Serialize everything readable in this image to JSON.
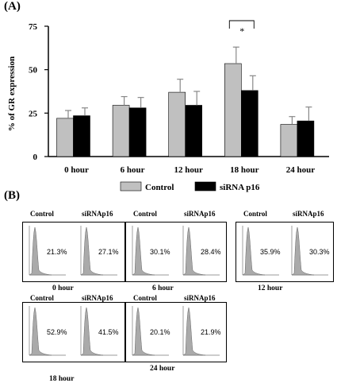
{
  "panel_a_label": "(A)",
  "panel_b_label": "(B)",
  "chart_data": {
    "type": "bar",
    "ylabel": "% of GR expression",
    "xlabel": "",
    "ylim": [
      0,
      75
    ],
    "yticks": [
      "0",
      "25",
      "50",
      "75"
    ],
    "categories": [
      "0 hour",
      "6 hour",
      "12 hour",
      "18 hour",
      "24 hour"
    ],
    "series": [
      {
        "name": "Control",
        "color": "#c0c0c0",
        "values": [
          22,
          29.5,
          37,
          53.5,
          18.5
        ],
        "errors": [
          4.5,
          5,
          7.5,
          9.5,
          4.5
        ]
      },
      {
        "name": "siRNA p16",
        "color": "#000000",
        "values": [
          23.5,
          28,
          29.5,
          38,
          20.5
        ],
        "errors": [
          4.5,
          6,
          8,
          8.5,
          8
        ]
      }
    ],
    "significance": {
      "category": "18 hour",
      "label": "*"
    },
    "legend_position": "bottom"
  },
  "flow": {
    "header_control": "Control",
    "header_sirna": "siRNAp16",
    "histogram_color": "#aaaaaa",
    "groups": [
      {
        "time": "0 hour",
        "control_pct": "21.3%",
        "sirna_pct": "27.1%"
      },
      {
        "time": "6 hour",
        "control_pct": "30.1%",
        "sirna_pct": "28.4%"
      },
      {
        "time": "12  hour",
        "control_pct": "35.9%",
        "sirna_pct": "30.3%"
      },
      {
        "time": "18 hour",
        "control_pct": "52.9%",
        "sirna_pct": "41.5%"
      },
      {
        "time": "24 hour",
        "control_pct": "20.1%",
        "sirna_pct": "21.9%"
      }
    ]
  }
}
